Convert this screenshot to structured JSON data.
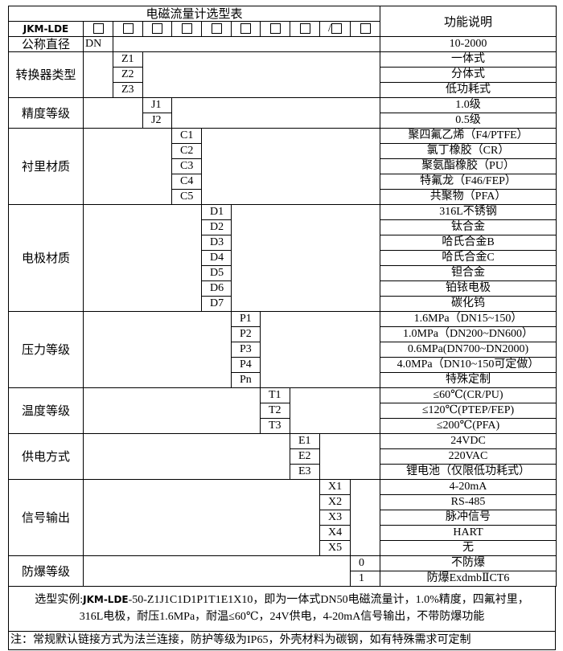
{
  "header": {
    "title": "电磁流量计选型表",
    "function_header": "功能说明",
    "brand": "JKM-LDE",
    "box_slots": [
      "□",
      "□",
      "□",
      "□",
      "□",
      "□",
      "□",
      "□",
      "/□",
      "□"
    ]
  },
  "diameter": {
    "label": "公称直径",
    "code": "DN",
    "desc": "10-2000"
  },
  "groups": [
    {
      "label": "转换器类型",
      "col": 1,
      "items": [
        {
          "code": "Z1",
          "desc": "一体式"
        },
        {
          "code": "Z2",
          "desc": "分体式"
        },
        {
          "code": "Z3",
          "desc": "低功耗式"
        }
      ]
    },
    {
      "label": "精度等级",
      "col": 2,
      "items": [
        {
          "code": "J1",
          "desc": "1.0级"
        },
        {
          "code": "J2",
          "desc": "0.5级"
        }
      ]
    },
    {
      "label": "衬里材质",
      "col": 3,
      "items": [
        {
          "code": "C1",
          "desc": "聚四氟乙烯（F4/PTFE）"
        },
        {
          "code": "C2",
          "desc": "氯丁橡胶（CR）"
        },
        {
          "code": "C3",
          "desc": "聚氨酯橡胶（PU）"
        },
        {
          "code": "C4",
          "desc": "特氟龙（F46/FEP）"
        },
        {
          "code": "C5",
          "desc": "共聚物（PFA）"
        }
      ]
    },
    {
      "label": "电极材质",
      "col": 4,
      "items": [
        {
          "code": "D1",
          "desc": "316L不锈钢"
        },
        {
          "code": "D2",
          "desc": "钛合金"
        },
        {
          "code": "D3",
          "desc": "哈氏合金B"
        },
        {
          "code": "D4",
          "desc": "哈氏合金C"
        },
        {
          "code": "D5",
          "desc": "钽合金"
        },
        {
          "code": "D6",
          "desc": "铂铱电极"
        },
        {
          "code": "D7",
          "desc": "碳化钨"
        }
      ]
    },
    {
      "label": "压力等级",
      "col": 5,
      "items": [
        {
          "code": "P1",
          "desc": "1.6MPa（DN15~150）"
        },
        {
          "code": "P2",
          "desc": "1.0MPa（DN200~DN600）"
        },
        {
          "code": "P3",
          "desc": "0.6MPa(DN700~DN2000)"
        },
        {
          "code": "P4",
          "desc": "4.0MPa（DN10~150可定做）"
        },
        {
          "code": "Pn",
          "desc": "特殊定制"
        }
      ]
    },
    {
      "label": "温度等级",
      "col": 6,
      "items": [
        {
          "code": "T1",
          "desc": "≤60℃(CR/PU)"
        },
        {
          "code": "T2",
          "desc": "≤120℃(PTEP/FEP)"
        },
        {
          "code": "T3",
          "desc": "≤200℃(PFA)"
        }
      ]
    },
    {
      "label": "供电方式",
      "col": 7,
      "items": [
        {
          "code": "E1",
          "desc": "24VDC"
        },
        {
          "code": "E2",
          "desc": "220VAC"
        },
        {
          "code": "E3",
          "desc": "锂电池（仅限低功耗式）"
        }
      ]
    },
    {
      "label": "信号输出",
      "col": 8,
      "items": [
        {
          "code": "X1",
          "desc": "4-20mA"
        },
        {
          "code": "X2",
          "desc": "RS-485"
        },
        {
          "code": "X3",
          "desc": "脉冲信号"
        },
        {
          "code": "X4",
          "desc": "HART"
        },
        {
          "code": "X5",
          "desc": "无"
        }
      ]
    },
    {
      "label": "防爆等级",
      "col": 9,
      "items": [
        {
          "code": "0",
          "desc": "不防爆"
        },
        {
          "code": "1",
          "desc": "防爆ExdmbⅡCT6"
        }
      ]
    }
  ],
  "example": {
    "prefix": "选型实例:",
    "brand": "JKM-LDE",
    "line1": "-50-Z1J1C1D1P1T1E1X10，即为一体式DN50电磁流量计，1.0%精度，四氟衬里，",
    "line2": "316L电极，耐压1.6MPa，耐温≤60℃，24V供电，4-20mA信号输出，不带防爆功能"
  },
  "note": "注：常规默认链接方式为法兰连接，防护等级为IP65，外壳材料为碳钢，如有特殊需求可定制"
}
